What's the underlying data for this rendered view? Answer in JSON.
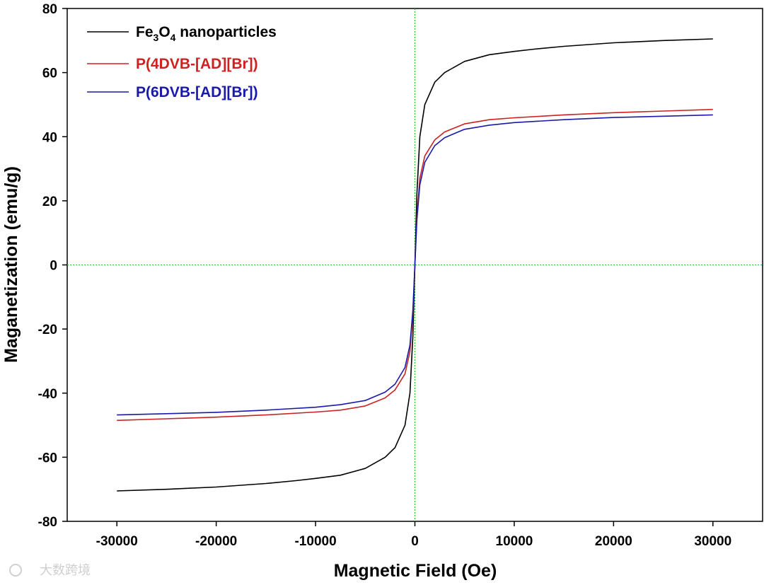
{
  "chart_data": {
    "type": "line",
    "xlabel": "Magnetic Field (Oe)",
    "ylabel": "Maganetization (emu/g)",
    "xlim": [
      -35000,
      35000
    ],
    "ylim": [
      -80,
      80
    ],
    "xticks": [
      -30000,
      -20000,
      -10000,
      0,
      10000,
      20000,
      30000
    ],
    "yticks": [
      -80,
      -60,
      -40,
      -20,
      0,
      20,
      40,
      60,
      80
    ],
    "zero_lines": {
      "color": "#33bb33",
      "style": "dotted"
    },
    "grid": false,
    "legend_position": "top-left",
    "series": [
      {
        "name": "Fe3O4 nanoparticles",
        "legend_parts": {
          "a": "Fe",
          "sub1": "3",
          "b": "O",
          "sub2": "4",
          "c": " nanoparticles"
        },
        "color": "#000000",
        "points": [
          [
            -30000,
            -70.5
          ],
          [
            -25000,
            -70.0
          ],
          [
            -20000,
            -69.3
          ],
          [
            -15000,
            -68.2
          ],
          [
            -12000,
            -67.3
          ],
          [
            -10000,
            -66.6
          ],
          [
            -7500,
            -65.6
          ],
          [
            -5000,
            -63.5
          ],
          [
            -3000,
            -60.0
          ],
          [
            -2000,
            -57.0
          ],
          [
            -1000,
            -50.0
          ],
          [
            -500,
            -40.0
          ],
          [
            -200,
            -22.0
          ],
          [
            0,
            0
          ],
          [
            200,
            22.0
          ],
          [
            500,
            40.0
          ],
          [
            1000,
            50.0
          ],
          [
            2000,
            57.0
          ],
          [
            3000,
            60.0
          ],
          [
            5000,
            63.5
          ],
          [
            7500,
            65.6
          ],
          [
            10000,
            66.6
          ],
          [
            12000,
            67.3
          ],
          [
            15000,
            68.2
          ],
          [
            20000,
            69.3
          ],
          [
            25000,
            70.0
          ],
          [
            30000,
            70.5
          ]
        ]
      },
      {
        "name": "P(4DVB-[AD][Br])",
        "color": "#cc2222",
        "points": [
          [
            -30000,
            -48.5
          ],
          [
            -25000,
            -48.0
          ],
          [
            -20000,
            -47.5
          ],
          [
            -15000,
            -46.8
          ],
          [
            -10000,
            -45.9
          ],
          [
            -7500,
            -45.3
          ],
          [
            -5000,
            -44.0
          ],
          [
            -3000,
            -41.5
          ],
          [
            -2000,
            -39.0
          ],
          [
            -1000,
            -34.0
          ],
          [
            -500,
            -27.0
          ],
          [
            -200,
            -15.0
          ],
          [
            0,
            0
          ],
          [
            200,
            15.0
          ],
          [
            500,
            27.0
          ],
          [
            1000,
            34.0
          ],
          [
            2000,
            39.0
          ],
          [
            3000,
            41.5
          ],
          [
            5000,
            44.0
          ],
          [
            7500,
            45.3
          ],
          [
            10000,
            45.9
          ],
          [
            15000,
            46.8
          ],
          [
            20000,
            47.5
          ],
          [
            25000,
            48.0
          ],
          [
            30000,
            48.5
          ]
        ]
      },
      {
        "name": "P(6DVB-[AD][Br])",
        "color": "#1a1aaa",
        "points": [
          [
            -30000,
            -46.8
          ],
          [
            -25000,
            -46.4
          ],
          [
            -20000,
            -46.0
          ],
          [
            -15000,
            -45.3
          ],
          [
            -10000,
            -44.4
          ],
          [
            -7500,
            -43.6
          ],
          [
            -5000,
            -42.3
          ],
          [
            -3000,
            -39.7
          ],
          [
            -2000,
            -37.2
          ],
          [
            -1000,
            -32.0
          ],
          [
            -500,
            -25.0
          ],
          [
            -200,
            -14.0
          ],
          [
            0,
            0
          ],
          [
            200,
            14.0
          ],
          [
            500,
            25.0
          ],
          [
            1000,
            32.0
          ],
          [
            2000,
            37.2
          ],
          [
            3000,
            39.7
          ],
          [
            5000,
            42.3
          ],
          [
            7500,
            43.6
          ],
          [
            10000,
            44.4
          ],
          [
            15000,
            45.3
          ],
          [
            20000,
            46.0
          ],
          [
            25000,
            46.4
          ],
          [
            30000,
            46.8
          ]
        ]
      }
    ]
  },
  "watermark": {
    "text": "大数跨境"
  }
}
